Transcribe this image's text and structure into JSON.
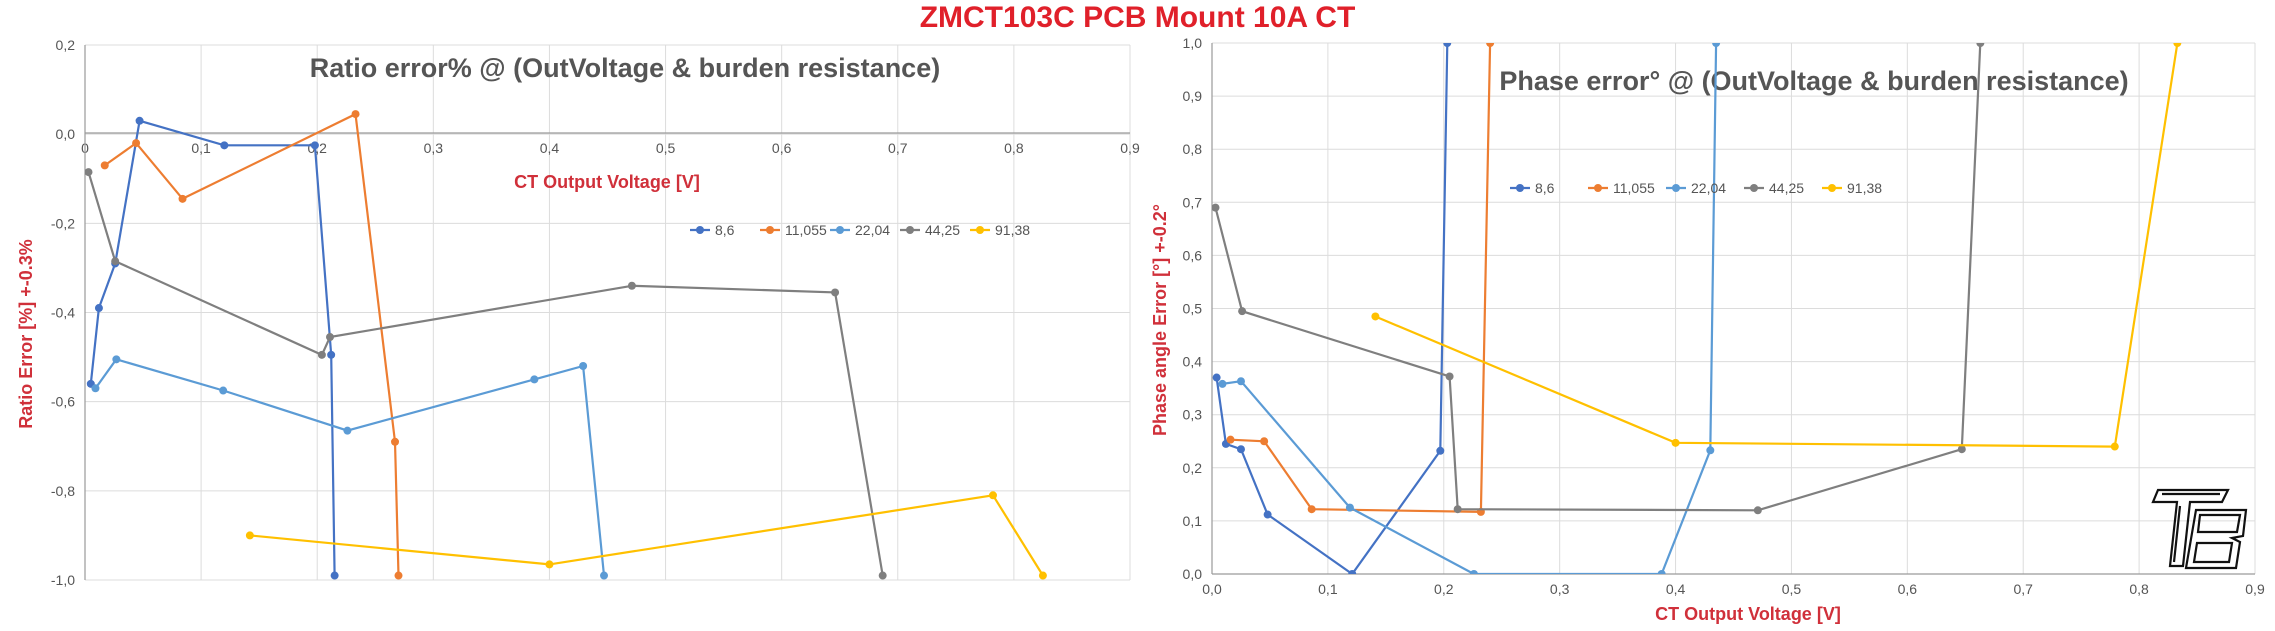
{
  "title": "ZMCT103C PCB Mount 10A CT",
  "chart_data": [
    {
      "type": "line",
      "title": "Ratio error% @ (OutVoltage & burden resistance)",
      "xlabel": "CT Output Voltage [V]",
      "ylabel": "Ratio Error [%] +-0.3%",
      "xlim": [
        0,
        0.9
      ],
      "ylim": [
        -1.0,
        0.2
      ],
      "xticks": [
        "0",
        "0,1",
        "0,2",
        "0,3",
        "0,4",
        "0,5",
        "0,6",
        "0,7",
        "0,8",
        "0,9"
      ],
      "yticks": [
        "0,2",
        "0,0",
        "-0,2",
        "-0,4",
        "-0,6",
        "-0,8",
        "-1,0"
      ],
      "grid": true,
      "legend": "right",
      "series": [
        {
          "name": "8,6",
          "color": "#4472c4",
          "points": [
            [
              0.005,
              -0.56
            ],
            [
              0.012,
              -0.39
            ],
            [
              0.026,
              -0.29
            ],
            [
              0.047,
              0.03
            ],
            [
              0.12,
              -0.025
            ],
            [
              0.198,
              -0.025
            ],
            [
              0.212,
              -0.495
            ],
            [
              0.215,
              -0.99
            ]
          ]
        },
        {
          "name": "11,055",
          "color": "#ed7d31",
          "points": [
            [
              0.017,
              -0.07
            ],
            [
              0.044,
              -0.02
            ],
            [
              0.084,
              -0.145
            ],
            [
              0.233,
              0.045
            ],
            [
              0.267,
              -0.69
            ],
            [
              0.27,
              -0.99
            ]
          ]
        },
        {
          "name": "22,04",
          "color": "#5b9bd5",
          "points": [
            [
              0.009,
              -0.57
            ],
            [
              0.027,
              -0.505
            ],
            [
              0.119,
              -0.575
            ],
            [
              0.226,
              -0.665
            ],
            [
              0.387,
              -0.55
            ],
            [
              0.429,
              -0.52
            ],
            [
              0.447,
              -0.99
            ]
          ]
        },
        {
          "name": "44,25",
          "color": "#7f7f7f",
          "points": [
            [
              0.003,
              -0.085
            ],
            [
              0.026,
              -0.285
            ],
            [
              0.204,
              -0.495
            ],
            [
              0.211,
              -0.455
            ],
            [
              0.471,
              -0.34
            ],
            [
              0.646,
              -0.355
            ],
            [
              0.687,
              -0.99
            ]
          ]
        },
        {
          "name": "91,38",
          "color": "#ffc000",
          "points": [
            [
              0.142,
              -0.9
            ],
            [
              0.4,
              -0.965
            ],
            [
              0.782,
              -0.81
            ],
            [
              0.825,
              -0.99
            ]
          ]
        }
      ]
    },
    {
      "type": "line",
      "title": "Phase error° @ (OutVoltage & burden resistance)",
      "xlabel": "CT Output Voltage [V]",
      "ylabel": "Phase angle Error [°] +-0.2°",
      "xlim": [
        0,
        0.9
      ],
      "ylim": [
        0,
        1.0
      ],
      "xticks": [
        "0,0",
        "0,1",
        "0,2",
        "0,3",
        "0,4",
        "0,5",
        "0,6",
        "0,7",
        "0,8",
        "0,9"
      ],
      "yticks": [
        "1,0",
        "0,9",
        "0,8",
        "0,7",
        "0,6",
        "0,5",
        "0,4",
        "0,3",
        "0,2",
        "0,1",
        "0,0"
      ],
      "grid": true,
      "legend": "top",
      "series": [
        {
          "name": "8,6",
          "color": "#4472c4",
          "points": [
            [
              0.004,
              0.37
            ],
            [
              0.012,
              0.245
            ],
            [
              0.025,
              0.235
            ],
            [
              0.048,
              0.112
            ],
            [
              0.121,
              0.0
            ],
            [
              0.197,
              0.232
            ],
            [
              0.203,
              1.0
            ]
          ]
        },
        {
          "name": "11,055",
          "color": "#ed7d31",
          "points": [
            [
              0.016,
              0.253
            ],
            [
              0.045,
              0.25
            ],
            [
              0.086,
              0.122
            ],
            [
              0.232,
              0.117
            ],
            [
              0.24,
              1.0
            ]
          ]
        },
        {
          "name": "22,04",
          "color": "#5b9bd5",
          "points": [
            [
              0.009,
              0.358
            ],
            [
              0.025,
              0.363
            ],
            [
              0.119,
              0.125
            ],
            [
              0.226,
              0.0
            ],
            [
              0.388,
              0.0
            ],
            [
              0.43,
              0.233
            ],
            [
              0.435,
              1.0
            ]
          ]
        },
        {
          "name": "44,25",
          "color": "#7f7f7f",
          "points": [
            [
              0.003,
              0.69
            ],
            [
              0.026,
              0.495
            ],
            [
              0.205,
              0.372
            ],
            [
              0.212,
              0.122
            ],
            [
              0.471,
              0.12
            ],
            [
              0.647,
              0.235
            ],
            [
              0.663,
              1.0
            ]
          ]
        },
        {
          "name": "91,38",
          "color": "#ffc000",
          "points": [
            [
              0.141,
              0.485
            ],
            [
              0.4,
              0.247
            ],
            [
              0.779,
              0.24
            ],
            [
              0.833,
              1.0
            ]
          ]
        }
      ]
    }
  ]
}
